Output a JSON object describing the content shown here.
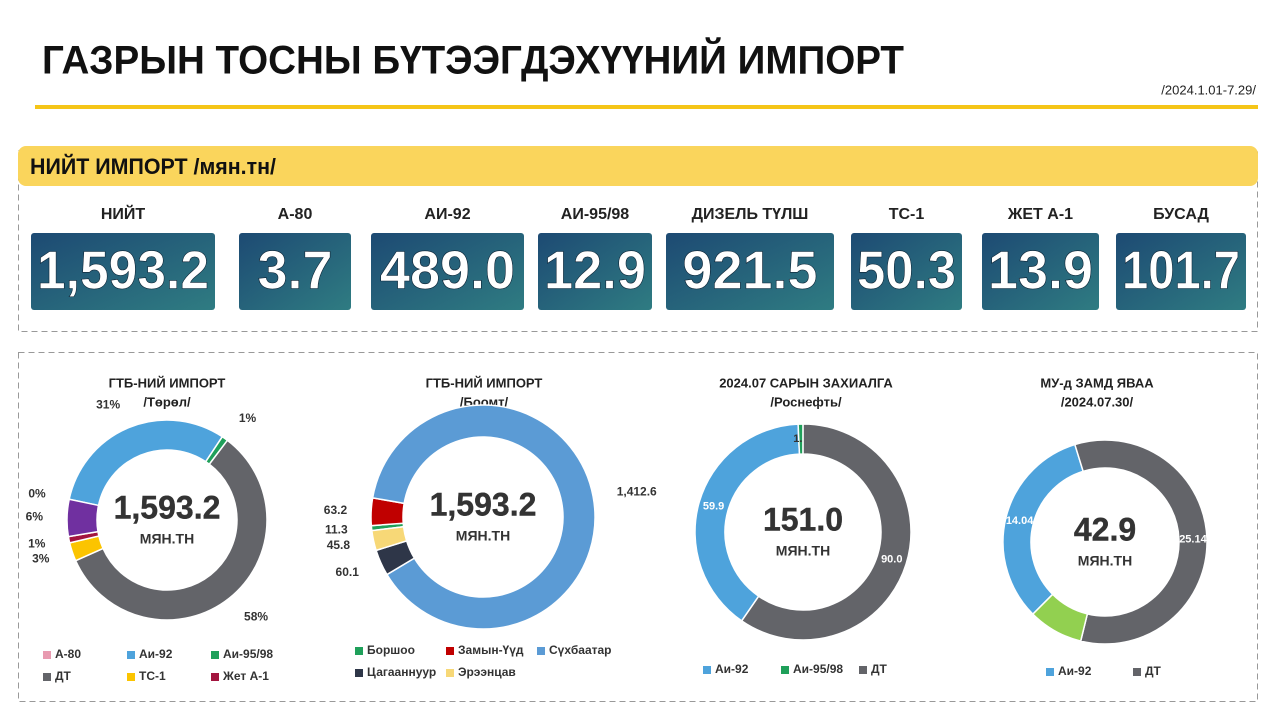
{
  "header": {
    "title": "ГАЗРЫН ТОСНЫ БҮТЭЭГДЭХҮҮНИЙ ИМПОРТ",
    "period": "/2024.1.01-7.29/"
  },
  "summary": {
    "title": "НИЙТ ИМПОРТ /мян.тн/",
    "items": [
      {
        "label": "НИЙТ",
        "value": "1,593.2"
      },
      {
        "label": "А-80",
        "value": "3.7"
      },
      {
        "label": "АИ-92",
        "value": "489.0"
      },
      {
        "label": "АИ-95/98",
        "value": "12.9"
      },
      {
        "label": "ДИЗЕЛЬ ТҮЛШ",
        "value": "921.5"
      },
      {
        "label": "ТС-1",
        "value": "50.3"
      },
      {
        "label": "ЖЕТ А-1",
        "value": "13.9"
      },
      {
        "label": "БУСАД",
        "value": "101.7"
      }
    ]
  },
  "chart_data": [
    {
      "type": "donut",
      "title": "ГТБ-НИЙ ИМПОРТ",
      "subtitle": "/Төрөл/",
      "center_label": "1,593.2",
      "center_unit": "МЯН.ТН",
      "categories": [
        "А-80",
        "Аи-92",
        "Аи-95/98",
        "ДТ",
        "ТС-1",
        "Жет А-1",
        null
      ],
      "values": [
        0,
        31,
        1,
        58,
        3,
        1,
        6
      ],
      "value_labels": [
        "0%",
        "31%",
        "1%",
        "58%",
        "3%",
        "1%",
        "6%"
      ],
      "colors": [
        "#e89ab0",
        "#4ea3dc",
        "#1fa05a",
        "#636469",
        "#fbc400",
        "#a3153f",
        "#7030a0"
      ]
    },
    {
      "type": "donut",
      "title": "ГТБ-НИЙ ИМПОРТ",
      "subtitle": "/Боомт/",
      "center_label": "1,593.2",
      "center_unit": "МЯН.ТН",
      "categories": [
        "Боршоо",
        "Замын-Үүд",
        "Сүхбаатар",
        "Цагааннуур",
        "Эрээнцав"
      ],
      "values": [
        11.3,
        63.2,
        1412.6,
        60.1,
        45.8
      ],
      "value_labels": [
        "11.3",
        "63.2",
        "1,412.6",
        "60.1",
        "45.8"
      ],
      "colors": [
        "#1fa05a",
        "#c00000",
        "#5b9bd5",
        "#2e3648",
        "#f7d877"
      ]
    },
    {
      "type": "donut",
      "title": "2024.07 САРЫН ЗАХИАЛГА",
      "subtitle": "/Роснефть/",
      "center_label": "151.0",
      "center_unit": "МЯН.ТН",
      "categories": [
        "Аи-92",
        "Аи-95/98",
        "ДТ"
      ],
      "values": [
        59.9,
        1.1,
        90.0
      ],
      "value_labels": [
        "59.9",
        "1.1",
        "90.0"
      ],
      "colors": [
        "#4ea3dc",
        "#1fa05a",
        "#636469"
      ]
    },
    {
      "type": "donut",
      "title": "МУ-д ЗАМД ЯВАА",
      "subtitle": "/2024.07.30/",
      "center_label": "42.9",
      "center_unit": "МЯН.ТН",
      "categories": [
        "Аи-92",
        "ДТ",
        null
      ],
      "values": [
        14.04,
        25.14,
        3.72
      ],
      "value_labels": [
        "14.04",
        "25.14",
        null
      ],
      "colors": [
        "#4ea3dc",
        "#636469",
        "#92d050"
      ]
    }
  ]
}
